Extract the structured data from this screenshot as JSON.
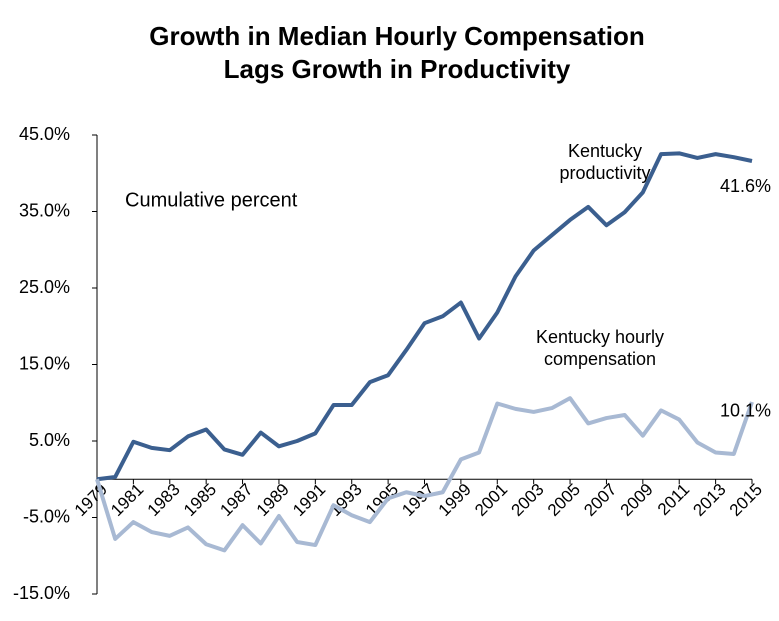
{
  "chart_data": {
    "type": "line",
    "title": [
      "Growth in Median Hourly Compensation",
      "Lags Growth in Productivity"
    ],
    "annotation": "Cumulative percent",
    "x": [
      1979,
      1980,
      1981,
      1982,
      1983,
      1984,
      1985,
      1986,
      1987,
      1988,
      1989,
      1990,
      1991,
      1992,
      1993,
      1994,
      1995,
      1996,
      1997,
      1998,
      1999,
      2000,
      2001,
      2002,
      2003,
      2004,
      2005,
      2006,
      2007,
      2008,
      2009,
      2010,
      2011,
      2012,
      2013,
      2014,
      2015
    ],
    "xlim": [
      1979,
      2015
    ],
    "xticks": [
      1979,
      1981,
      1983,
      1985,
      1987,
      1989,
      1991,
      1993,
      1995,
      1997,
      1999,
      2001,
      2003,
      2005,
      2007,
      2009,
      2011,
      2013,
      2015
    ],
    "ylim": [
      -15,
      45
    ],
    "yticks": [
      {
        "value": -15,
        "label": "-15.0%"
      },
      {
        "value": -5,
        "label": "-5.0%"
      },
      {
        "value": 5,
        "label": "5.0%"
      },
      {
        "value": 15,
        "label": "15.0%"
      },
      {
        "value": 25,
        "label": "25.0%"
      },
      {
        "value": 35,
        "label": "35.0%"
      },
      {
        "value": 45,
        "label": "45.0%"
      }
    ],
    "grid": false,
    "series": [
      {
        "name": "Kentucky productivity",
        "color": "#3b5f8f",
        "end_label": "41.6%",
        "values": [
          0,
          0.3,
          4.9,
          4.1,
          3.8,
          5.6,
          6.5,
          3.9,
          3.2,
          6.1,
          4.3,
          5.0,
          6.0,
          9.7,
          9.7,
          12.7,
          13.6,
          16.9,
          20.4,
          21.3,
          23.1,
          18.4,
          21.8,
          26.5,
          29.9,
          31.9,
          33.9,
          35.6,
          33.2,
          34.9,
          37.5,
          42.5,
          42.6,
          42.0,
          42.5,
          42.1,
          41.6
        ]
      },
      {
        "name": "Kentucky hourly compensation",
        "color": "#a8b9d3",
        "end_label": "10.1%",
        "values": [
          0,
          -7.8,
          -5.6,
          -6.9,
          -7.4,
          -6.3,
          -8.5,
          -9.3,
          -6.0,
          -8.4,
          -4.8,
          -8.2,
          -8.6,
          -3.4,
          -4.7,
          -5.6,
          -2.5,
          -1.7,
          -2.2,
          -1.7,
          2.6,
          3.5,
          9.9,
          9.2,
          8.8,
          9.3,
          10.6,
          7.3,
          8.0,
          8.4,
          5.7,
          9.0,
          7.8,
          4.8,
          3.5,
          3.3,
          10.1
        ]
      }
    ]
  }
}
